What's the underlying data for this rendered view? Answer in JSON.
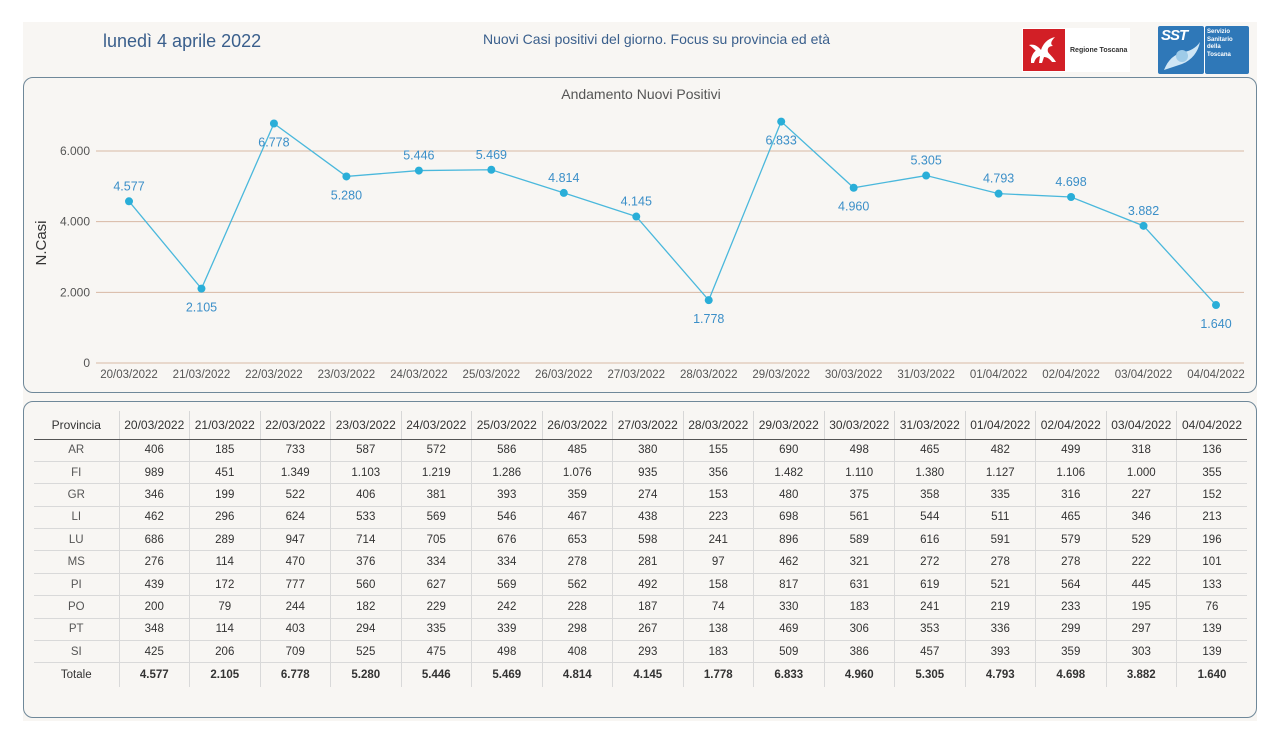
{
  "header": {
    "date": "lunedì 4 aprile 2022",
    "title": "Nuovi Casi positivi del giorno. Focus su provincia ed età",
    "logo_regione": "Regione Toscana",
    "logo_sst_mark": "SST",
    "logo_sst_lines": [
      "Servizio",
      "Sanitario",
      "della",
      "Toscana"
    ]
  },
  "colors": {
    "line": "#4ab8dc",
    "marker": "#2aaed8",
    "label": "#3b8fc8",
    "gridline": "#d9b9a4",
    "axis_text": "#555555",
    "panel_border": "#6f8899",
    "brand_red": "#d21f26",
    "brand_blue": "#2f78b8"
  },
  "chart_data": {
    "type": "line",
    "title": "Andamento Nuovi Positivi",
    "xlabel": "",
    "ylabel": "N.Casi",
    "ylim": [
      0,
      6000
    ],
    "yticks": [
      0,
      2000,
      4000,
      6000
    ],
    "ytick_labels": [
      "0",
      "2.000",
      "4.000",
      "6.000"
    ],
    "grid": true,
    "x": [
      "20/03/2022",
      "21/03/2022",
      "22/03/2022",
      "23/03/2022",
      "24/03/2022",
      "25/03/2022",
      "26/03/2022",
      "27/03/2022",
      "28/03/2022",
      "29/03/2022",
      "30/03/2022",
      "31/03/2022",
      "01/04/2022",
      "02/04/2022",
      "03/04/2022",
      "04/04/2022"
    ],
    "series": [
      {
        "values": [
          4577,
          2105,
          6778,
          5280,
          5446,
          5469,
          4814,
          4145,
          1778,
          6833,
          4960,
          5305,
          4793,
          4698,
          3882,
          1640
        ],
        "labels": [
          "4.577",
          "2.105",
          "6.778",
          "5.280",
          "5.446",
          "5.469",
          "4.814",
          "4.145",
          "1.778",
          "6.833",
          "4.960",
          "5.305",
          "4.793",
          "4.698",
          "3.882",
          "1.640"
        ]
      }
    ]
  },
  "table": {
    "header_label": "Provincia",
    "columns": [
      "20/03/2022",
      "21/03/2022",
      "22/03/2022",
      "23/03/2022",
      "24/03/2022",
      "25/03/2022",
      "26/03/2022",
      "27/03/2022",
      "28/03/2022",
      "29/03/2022",
      "30/03/2022",
      "31/03/2022",
      "01/04/2022",
      "02/04/2022",
      "03/04/2022",
      "04/04/2022"
    ],
    "rows": [
      {
        "name": "AR",
        "values": [
          "406",
          "185",
          "733",
          "587",
          "572",
          "586",
          "485",
          "380",
          "155",
          "690",
          "498",
          "465",
          "482",
          "499",
          "318",
          "136"
        ]
      },
      {
        "name": "FI",
        "values": [
          "989",
          "451",
          "1.349",
          "1.103",
          "1.219",
          "1.286",
          "1.076",
          "935",
          "356",
          "1.482",
          "1.110",
          "1.380",
          "1.127",
          "1.106",
          "1.000",
          "355"
        ]
      },
      {
        "name": "GR",
        "values": [
          "346",
          "199",
          "522",
          "406",
          "381",
          "393",
          "359",
          "274",
          "153",
          "480",
          "375",
          "358",
          "335",
          "316",
          "227",
          "152"
        ]
      },
      {
        "name": "LI",
        "values": [
          "462",
          "296",
          "624",
          "533",
          "569",
          "546",
          "467",
          "438",
          "223",
          "698",
          "561",
          "544",
          "511",
          "465",
          "346",
          "213"
        ]
      },
      {
        "name": "LU",
        "values": [
          "686",
          "289",
          "947",
          "714",
          "705",
          "676",
          "653",
          "598",
          "241",
          "896",
          "589",
          "616",
          "591",
          "579",
          "529",
          "196"
        ]
      },
      {
        "name": "MS",
        "values": [
          "276",
          "114",
          "470",
          "376",
          "334",
          "334",
          "278",
          "281",
          "97",
          "462",
          "321",
          "272",
          "278",
          "278",
          "222",
          "101"
        ]
      },
      {
        "name": "PI",
        "values": [
          "439",
          "172",
          "777",
          "560",
          "627",
          "569",
          "562",
          "492",
          "158",
          "817",
          "631",
          "619",
          "521",
          "564",
          "445",
          "133"
        ]
      },
      {
        "name": "PO",
        "values": [
          "200",
          "79",
          "244",
          "182",
          "229",
          "242",
          "228",
          "187",
          "74",
          "330",
          "183",
          "241",
          "219",
          "233",
          "195",
          "76"
        ]
      },
      {
        "name": "PT",
        "values": [
          "348",
          "114",
          "403",
          "294",
          "335",
          "339",
          "298",
          "267",
          "138",
          "469",
          "306",
          "353",
          "336",
          "299",
          "297",
          "139"
        ]
      },
      {
        "name": "SI",
        "values": [
          "425",
          "206",
          "709",
          "525",
          "475",
          "498",
          "408",
          "293",
          "183",
          "509",
          "386",
          "457",
          "393",
          "359",
          "303",
          "139"
        ]
      }
    ],
    "total": {
      "name": "Totale",
      "values": [
        "4.577",
        "2.105",
        "6.778",
        "5.280",
        "5.446",
        "5.469",
        "4.814",
        "4.145",
        "1.778",
        "6.833",
        "4.960",
        "5.305",
        "4.793",
        "4.698",
        "3.882",
        "1.640"
      ]
    }
  }
}
